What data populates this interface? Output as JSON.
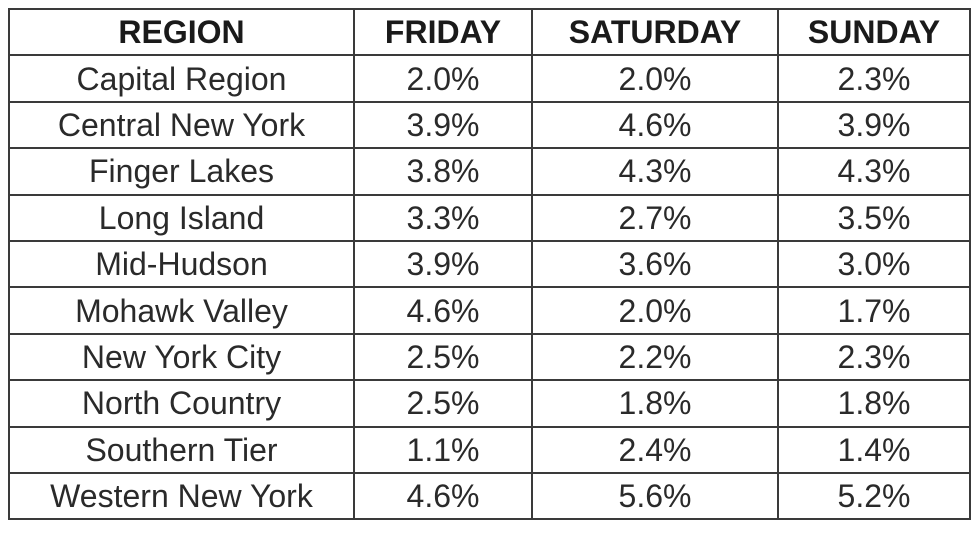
{
  "table": {
    "header": [
      "REGION",
      "FRIDAY",
      "SATURDAY",
      "SUNDAY"
    ],
    "rows": [
      [
        "Capital Region",
        "2.0%",
        "2.0%",
        "2.3%"
      ],
      [
        "Central New York",
        "3.9%",
        "4.6%",
        "3.9%"
      ],
      [
        "Finger Lakes",
        "3.8%",
        "4.3%",
        "4.3%"
      ],
      [
        "Long Island",
        "3.3%",
        "2.7%",
        "3.5%"
      ],
      [
        "Mid-Hudson",
        "3.9%",
        "3.6%",
        "3.0%"
      ],
      [
        "Mohawk Valley",
        "4.6%",
        "2.0%",
        "1.7%"
      ],
      [
        "New York City",
        "2.5%",
        "2.2%",
        "2.3%"
      ],
      [
        "North Country",
        "2.5%",
        "1.8%",
        "1.8%"
      ],
      [
        "Southern Tier",
        "1.1%",
        "2.4%",
        "1.4%"
      ],
      [
        "Western New York",
        "4.6%",
        "5.6%",
        "5.2%"
      ]
    ]
  }
}
